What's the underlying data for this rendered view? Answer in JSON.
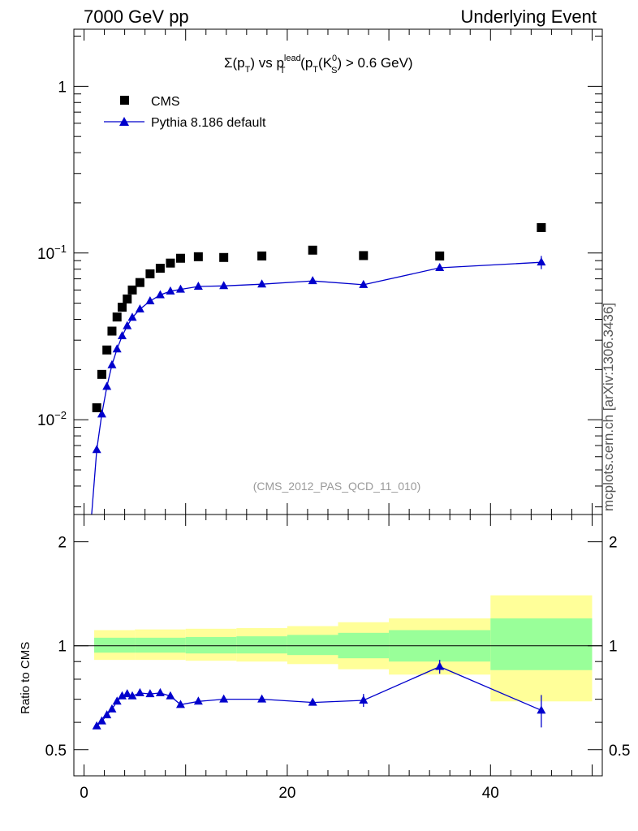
{
  "header": {
    "left": "7000 GeV pp",
    "right": "Underlying Event"
  },
  "side_note": "mcplots.cern.ch [arXiv:1306.3436]",
  "chart_data": [
    {
      "type": "scatter",
      "title_parts": {
        "sum": "Σ(p",
        "sub_T": "T",
        "mid": ") vs p",
        "sup_lead": "lead",
        "paren": " (p",
        "k": "(K",
        "sup_0": "0",
        "sub_S": "S",
        "tail": ") > 0.6 GeV)"
      },
      "watermark": "(CMS_2012_PAS_QCD_11_010)",
      "yscale": "log",
      "ylim": [
        0.0027,
        2.2
      ],
      "xlim": [
        -1,
        51
      ],
      "ytick_labels": [
        {
          "value": 1,
          "base": "1",
          "exp": ""
        },
        {
          "value": 0.1,
          "base": "10",
          "exp": "−1"
        },
        {
          "value": 0.01,
          "base": "10",
          "exp": "−2"
        }
      ],
      "legend_position": "top-left",
      "series": [
        {
          "name": "CMS",
          "marker": "square",
          "color": "#000000",
          "x": [
            1.25,
            1.75,
            2.25,
            2.75,
            3.25,
            3.75,
            4.25,
            4.75,
            5.5,
            6.5,
            7.5,
            8.5,
            9.5,
            11.25,
            13.75,
            17.5,
            22.5,
            27.5,
            35,
            45
          ],
          "y": [
            0.0118,
            0.0187,
            0.0262,
            0.034,
            0.0413,
            0.0473,
            0.053,
            0.06,
            0.0665,
            0.075,
            0.081,
            0.087,
            0.093,
            0.095,
            0.094,
            0.096,
            0.104,
            0.0965,
            0.096,
            0.142
          ]
        },
        {
          "name": "Pythia 8.186 default",
          "marker": "triangle",
          "color": "#0000cc",
          "x": [
            0.75,
            1.25,
            1.75,
            2.25,
            2.75,
            3.25,
            3.75,
            4.25,
            4.75,
            5.5,
            6.5,
            7.5,
            8.5,
            9.5,
            11.25,
            13.75,
            17.5,
            22.5,
            27.5,
            35,
            45
          ],
          "y": [
            0.0027,
            0.0066,
            0.0108,
            0.0158,
            0.0213,
            0.0265,
            0.0318,
            0.0365,
            0.041,
            0.046,
            0.0515,
            0.056,
            0.059,
            0.0605,
            0.063,
            0.0635,
            0.065,
            0.068,
            0.0645,
            0.0815,
            0.088
          ],
          "yerr": [
            0,
            0,
            0,
            0,
            0,
            0,
            0,
            0,
            0,
            0,
            0,
            0,
            0,
            0,
            0,
            0,
            0,
            0,
            0,
            0.003,
            0.008
          ]
        }
      ]
    },
    {
      "type": "line",
      "ylabel": "Ratio to CMS",
      "yscale": "log",
      "ylim": [
        0.42,
        2.4
      ],
      "xlim": [
        -1,
        51
      ],
      "ytick_labels": [
        {
          "value": 2,
          "label": "2"
        },
        {
          "value": 1,
          "label": "1"
        },
        {
          "value": 0.5,
          "label": "0.5"
        }
      ],
      "xtick_labels": [
        {
          "value": 0,
          "label": "0"
        },
        {
          "value": 20,
          "label": "20"
        },
        {
          "value": 40,
          "label": "40"
        }
      ],
      "bands": {
        "edges": [
          1,
          5,
          10,
          15,
          20,
          25,
          30,
          40,
          50
        ],
        "outer_color": "#ffff99",
        "inner_color": "#99ff99",
        "outer": [
          [
            0.91,
            1.11
          ],
          [
            0.91,
            1.115
          ],
          [
            0.905,
            1.12
          ],
          [
            0.9,
            1.125
          ],
          [
            0.885,
            1.14
          ],
          [
            0.855,
            1.17
          ],
          [
            0.825,
            1.2
          ],
          [
            0.69,
            1.4
          ]
        ],
        "inner": [
          [
            0.955,
            1.055
          ],
          [
            0.955,
            1.055
          ],
          [
            0.95,
            1.06
          ],
          [
            0.95,
            1.065
          ],
          [
            0.94,
            1.075
          ],
          [
            0.92,
            1.09
          ],
          [
            0.9,
            1.11
          ],
          [
            0.85,
            1.2
          ]
        ]
      },
      "series": [
        {
          "name": "Pythia 8.186 default",
          "marker": "triangle",
          "color": "#0000cc",
          "x": [
            1.25,
            1.75,
            2.25,
            2.75,
            3.25,
            3.75,
            4.25,
            4.75,
            5.5,
            6.5,
            7.5,
            8.5,
            9.5,
            11.25,
            13.75,
            17.5,
            22.5,
            27.5,
            35,
            45
          ],
          "y": [
            0.585,
            0.605,
            0.63,
            0.655,
            0.69,
            0.715,
            0.725,
            0.715,
            0.73,
            0.725,
            0.73,
            0.715,
            0.675,
            0.69,
            0.7,
            0.7,
            0.685,
            0.695,
            0.87,
            0.65
          ],
          "yerr": [
            0,
            0,
            0,
            0,
            0,
            0,
            0,
            0,
            0,
            0,
            0,
            0,
            0,
            0,
            0,
            0,
            0,
            0.03,
            0.04,
            0.07
          ]
        }
      ]
    }
  ]
}
